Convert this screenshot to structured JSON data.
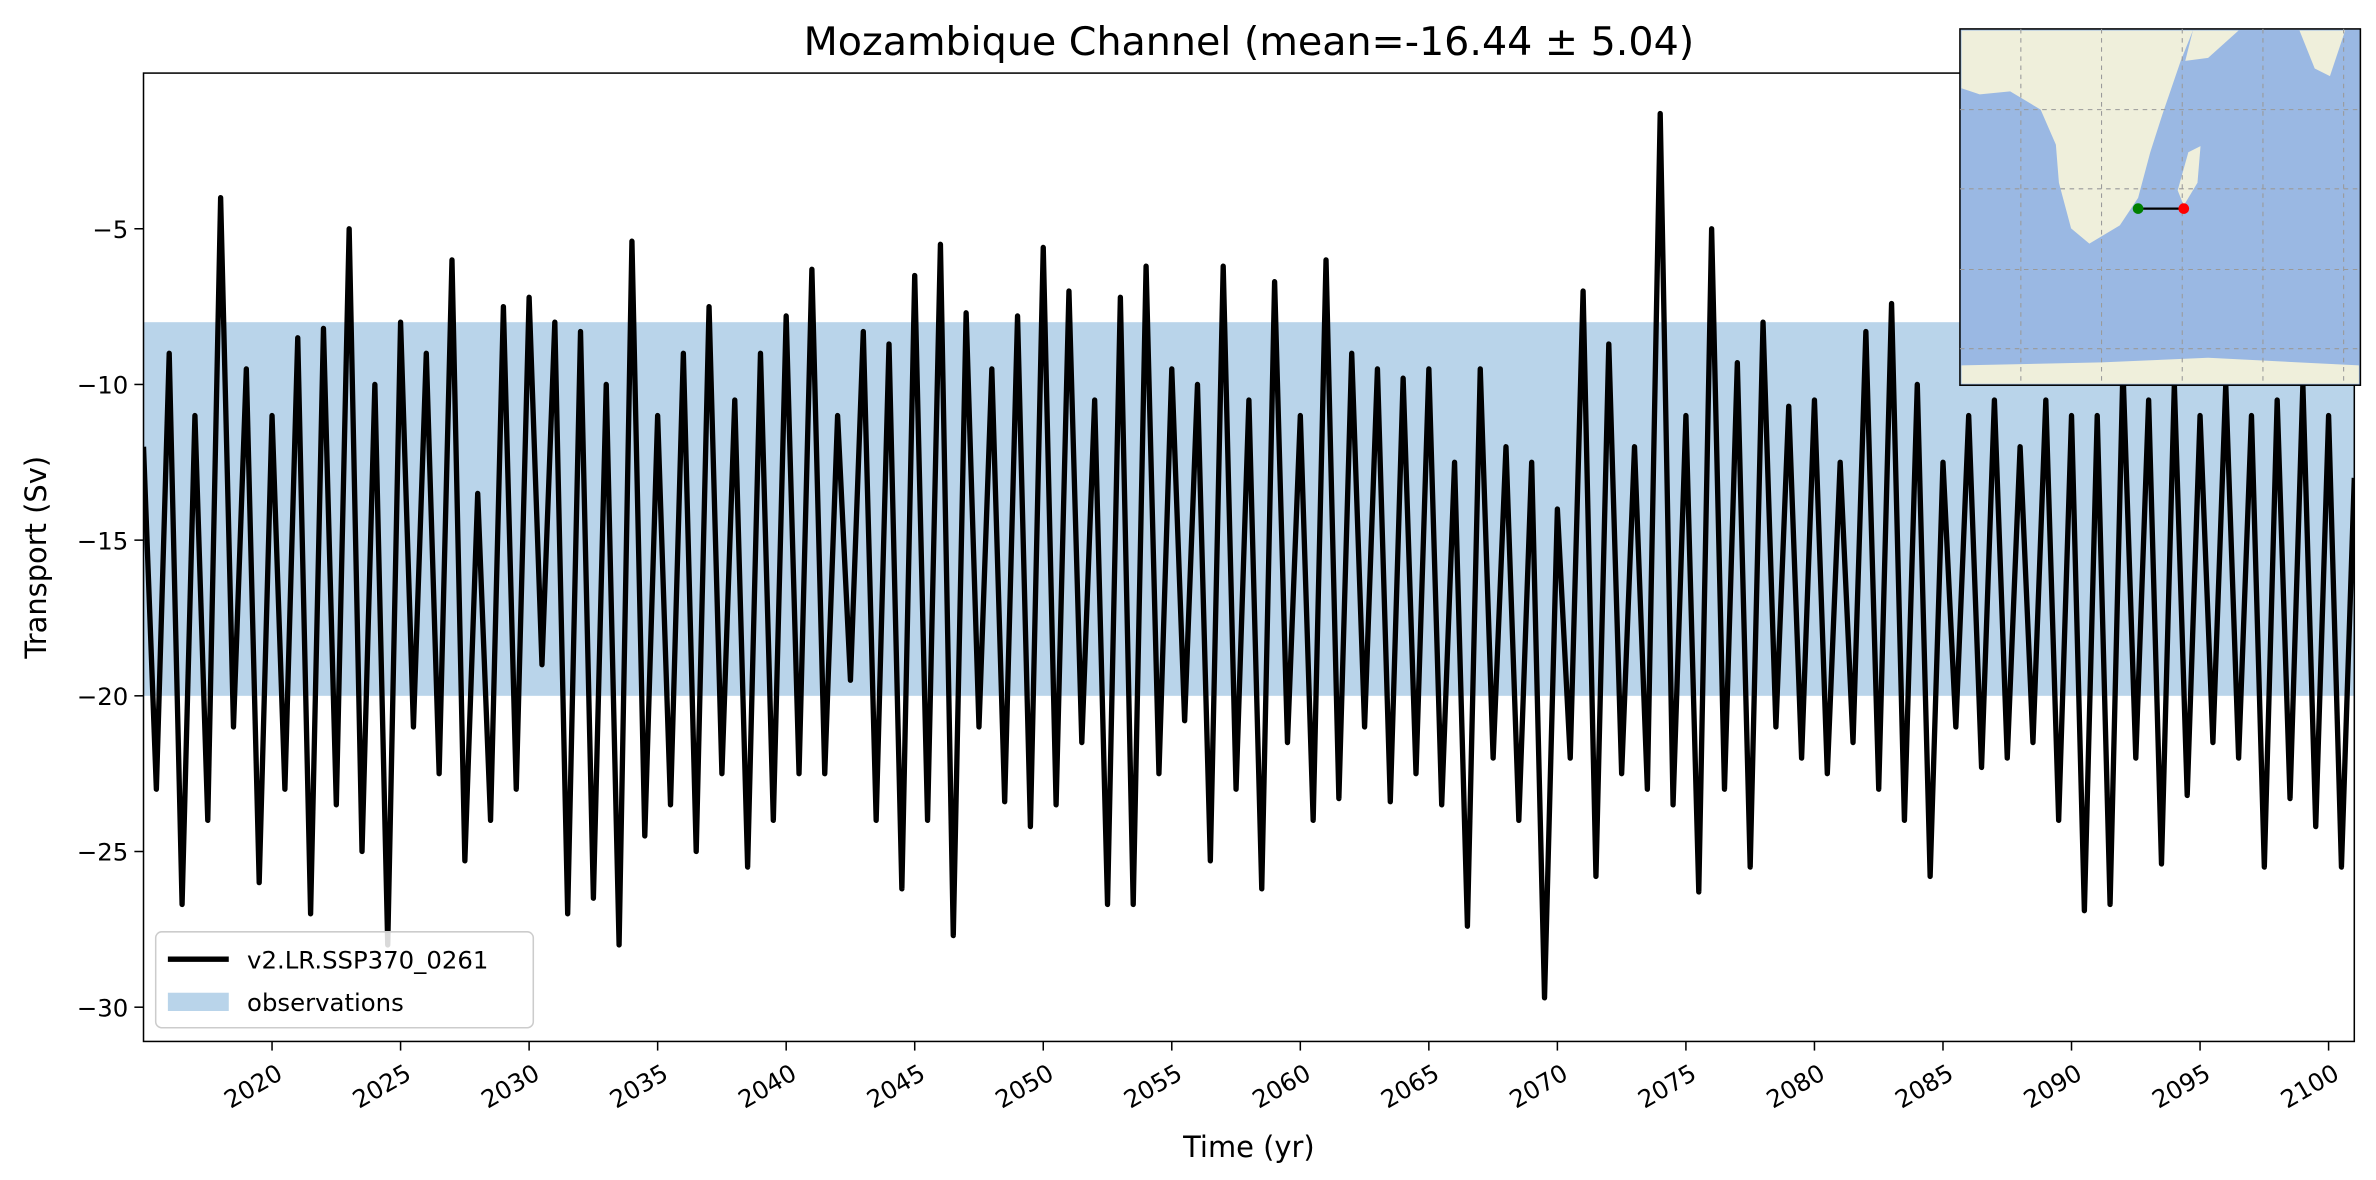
{
  "chart_data": {
    "type": "line",
    "title": "Mozambique Channel (mean=-16.44 ± 5.04)",
    "xlabel": "Time (yr)",
    "ylabel": "Transport (Sv)",
    "xlim": [
      2015,
      2101
    ],
    "ylim": [
      -31.1,
      0
    ],
    "xticks": [
      2020,
      2025,
      2030,
      2035,
      2040,
      2045,
      2050,
      2055,
      2060,
      2065,
      2070,
      2075,
      2080,
      2085,
      2090,
      2095,
      2100
    ],
    "yticks": [
      {
        "value": -5,
        "label": "−5"
      },
      {
        "value": -10,
        "label": "−10"
      },
      {
        "value": -15,
        "label": "−15"
      },
      {
        "value": -20,
        "label": "−20"
      },
      {
        "value": -25,
        "label": "−25"
      },
      {
        "value": -30,
        "label": "−30"
      }
    ],
    "band": {
      "name": "observations",
      "color": "#b9d4ea",
      "range": [
        -20,
        -8
      ]
    },
    "legend": "lower left",
    "x": [
      2015,
      2015.5,
      2016,
      2016.5,
      2017,
      2017.5,
      2018,
      2018.5,
      2019,
      2019.5,
      2020,
      2020.5,
      2021,
      2021.5,
      2022,
      2022.5,
      2023,
      2023.5,
      2024,
      2024.5,
      2025,
      2025.5,
      2026,
      2026.5,
      2027,
      2027.5,
      2028,
      2028.5,
      2029,
      2029.5,
      2030,
      2030.5,
      2031,
      2031.5,
      2032,
      2032.5,
      2033,
      2033.5,
      2034,
      2034.5,
      2035,
      2035.5,
      2036,
      2036.5,
      2037,
      2037.5,
      2038,
      2038.5,
      2039,
      2039.5,
      2040,
      2040.5,
      2041,
      2041.5,
      2042,
      2042.5,
      2043,
      2043.5,
      2044,
      2044.5,
      2045,
      2045.5,
      2046,
      2046.5,
      2047,
      2047.5,
      2048,
      2048.5,
      2049,
      2049.5,
      2050,
      2050.5,
      2051,
      2051.5,
      2052,
      2052.5,
      2053,
      2053.5,
      2054,
      2054.5,
      2055,
      2055.5,
      2056,
      2056.5,
      2057,
      2057.5,
      2058,
      2058.5,
      2059,
      2059.5,
      2060,
      2060.5,
      2061,
      2061.5,
      2062,
      2062.5,
      2063,
      2063.5,
      2064,
      2064.5,
      2065,
      2065.5,
      2066,
      2066.5,
      2067,
      2067.5,
      2068,
      2068.5,
      2069,
      2069.5,
      2070,
      2070.5,
      2071,
      2071.5,
      2072,
      2072.5,
      2073,
      2073.5,
      2074,
      2074.5,
      2075,
      2075.5,
      2076,
      2076.5,
      2077,
      2077.5,
      2078,
      2078.5,
      2079,
      2079.5,
      2080,
      2080.5,
      2081,
      2081.5,
      2082,
      2082.5,
      2083,
      2083.5,
      2084,
      2084.5,
      2085,
      2085.5,
      2086,
      2086.5,
      2087,
      2087.5,
      2088,
      2088.5,
      2089,
      2089.5,
      2090,
      2090.5,
      2091,
      2091.5,
      2092,
      2092.5,
      2093,
      2093.5,
      2094,
      2094.5,
      2095,
      2095.5,
      2096,
      2096.5,
      2097,
      2097.5,
      2098,
      2098.5,
      2099,
      2099.5,
      2100,
      2100.5,
      2101
    ],
    "series": [
      {
        "name": "v2.LR.SSP370_0261",
        "color": "#000000",
        "values": [
          -12,
          -23,
          -9,
          -26.7,
          -11,
          -24,
          -4,
          -21,
          -9.5,
          -26,
          -11,
          -23,
          -8.5,
          -27,
          -8.2,
          -23.5,
          -5,
          -25,
          -10,
          -28,
          -8,
          -21,
          -9,
          -22.5,
          -6,
          -25.3,
          -13.5,
          -24,
          -7.5,
          -23,
          -7.2,
          -19,
          -8,
          -27,
          -8.3,
          -26.5,
          -10,
          -28,
          -5.4,
          -24.5,
          -11,
          -23.5,
          -9,
          -25,
          -7.5,
          -22.5,
          -10.5,
          -25.5,
          -9,
          -24,
          -7.8,
          -22.5,
          -6.3,
          -22.5,
          -11,
          -19.5,
          -8.3,
          -24,
          -8.7,
          -26.2,
          -6.5,
          -24,
          -5.5,
          -27.7,
          -7.7,
          -21,
          -9.5,
          -23.4,
          -7.8,
          -24.2,
          -5.6,
          -23.5,
          -7,
          -21.5,
          -10.5,
          -26.7,
          -7.2,
          -26.7,
          -6.2,
          -22.5,
          -9.5,
          -20.8,
          -10,
          -25.3,
          -6.2,
          -23,
          -10.5,
          -26.2,
          -6.7,
          -21.5,
          -11,
          -24,
          -6,
          -23.3,
          -9,
          -21,
          -9.5,
          -23.4,
          -9.8,
          -22.5,
          -9.5,
          -23.5,
          -12.5,
          -27.4,
          -9.5,
          -22,
          -12,
          -24,
          -12.5,
          -29.7,
          -14,
          -22,
          -7,
          -25.8,
          -8.7,
          -22.5,
          -12,
          -23,
          -1.3,
          -23.5,
          -11,
          -26.3,
          -5,
          -23,
          -9.3,
          -25.5,
          -8,
          -21,
          -10.7,
          -22,
          -10.5,
          -22.5,
          -12.5,
          -21.5,
          -8.3,
          -23,
          -7.4,
          -24,
          -10,
          -25.8,
          -12.5,
          -21,
          -11,
          -22.3,
          -10.5,
          -22,
          -12,
          -21.5,
          -10.5,
          -24,
          -11,
          -26.9,
          -11,
          -26.7,
          -9.5,
          -22,
          -10.5,
          -25.4,
          -10,
          -23.2,
          -11,
          -21.5,
          -10,
          -22,
          -11,
          -25.5,
          -10.5,
          -23.3,
          -10,
          -24.2,
          -11,
          -25.5,
          -13
        ]
      }
    ]
  }
}
